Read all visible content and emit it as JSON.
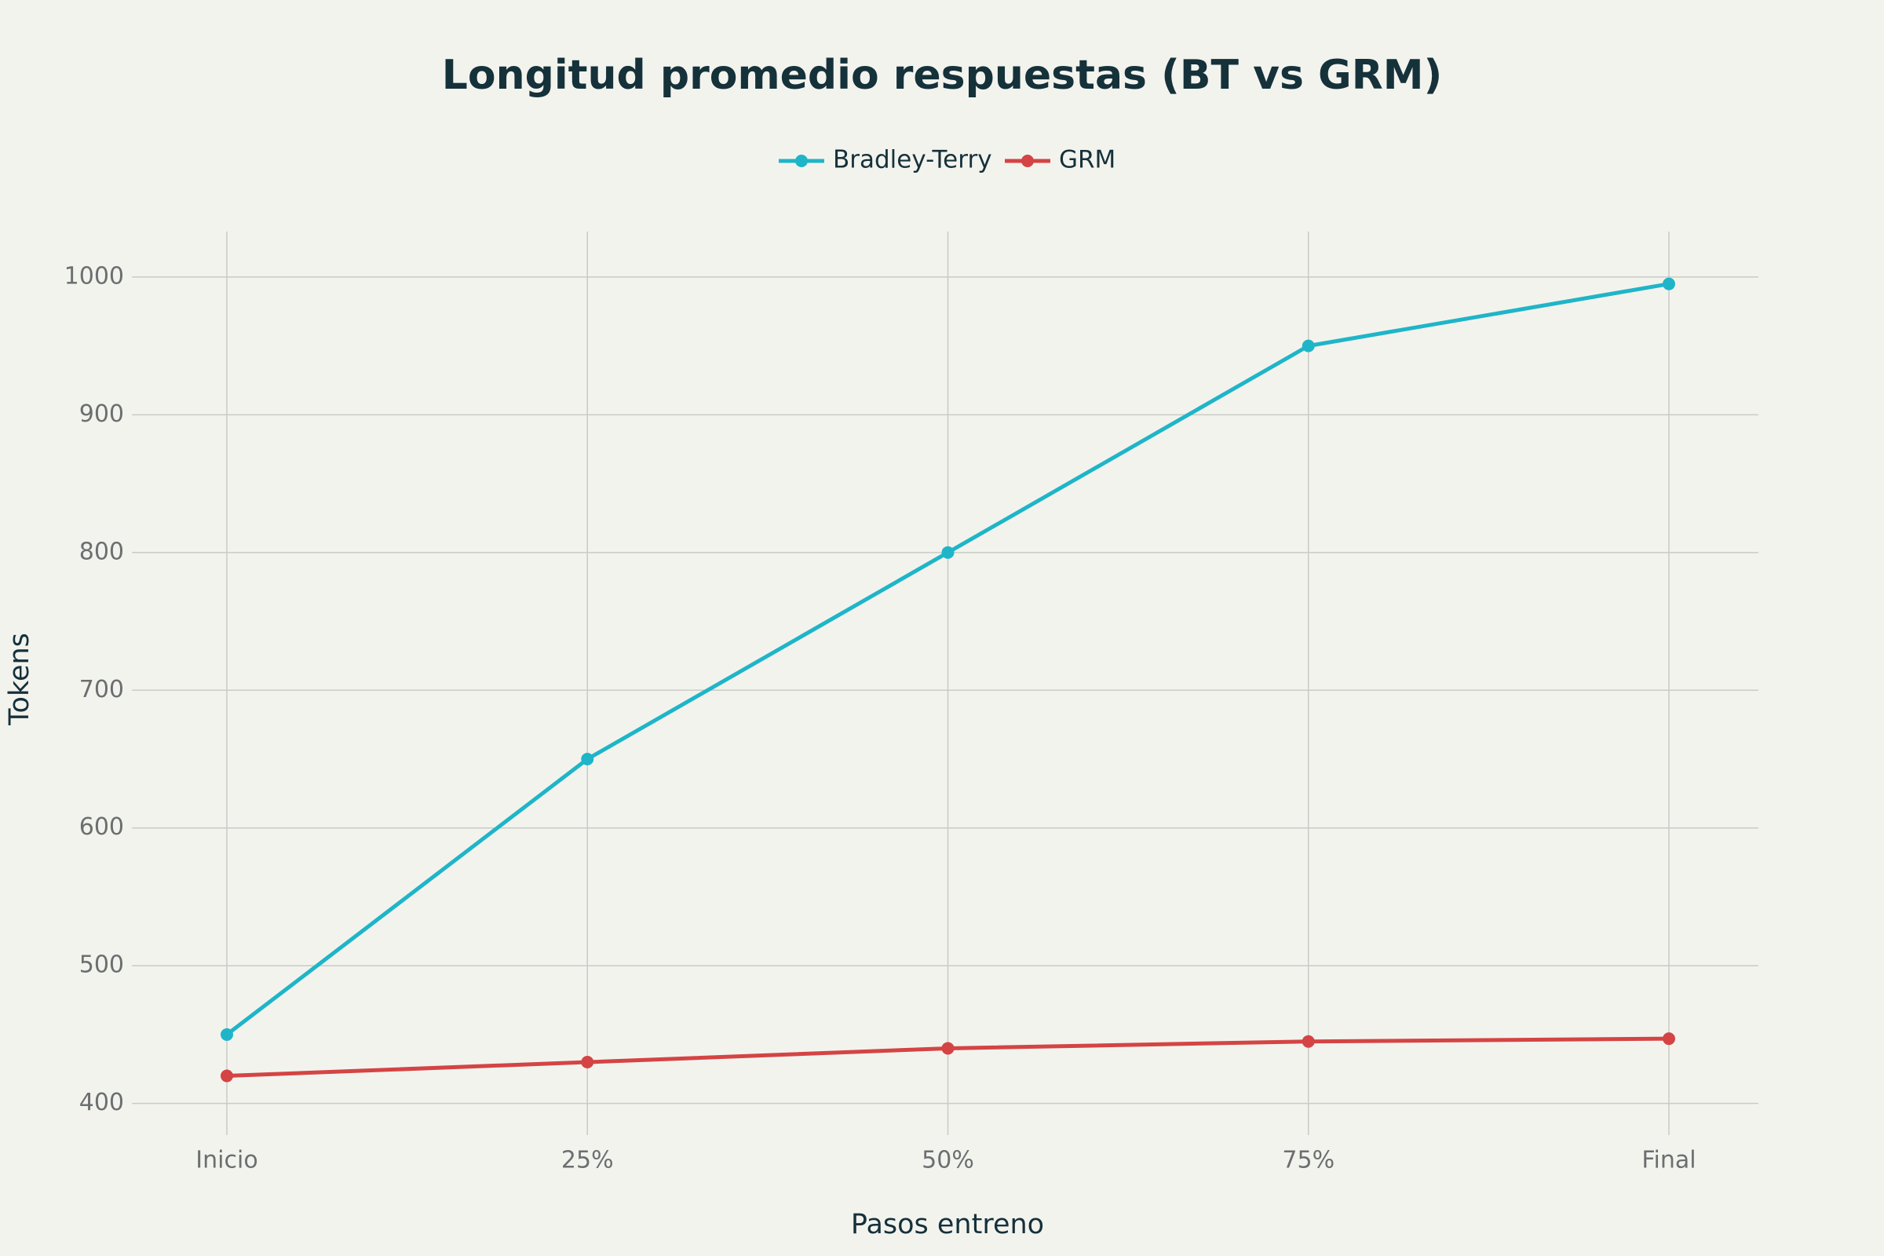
{
  "chart_data": {
    "type": "line",
    "title": "Longitud promedio respuestas (BT vs GRM)",
    "xlabel": "Pasos entreno",
    "ylabel": "Tokens",
    "categories": [
      "Inicio",
      "25%",
      "50%",
      "75%",
      "Final"
    ],
    "series": [
      {
        "name": "Bradley-Terry",
        "color": "#1fb5c8",
        "values": [
          450,
          650,
          800,
          950,
          995
        ]
      },
      {
        "name": "GRM",
        "color": "#d44444",
        "values": [
          420,
          430,
          440,
          445,
          447
        ]
      }
    ],
    "ylim": [
      377,
      1033
    ],
    "yticks": [
      400,
      500,
      600,
      700,
      800,
      900,
      1000
    ],
    "grid": true,
    "legend": "top"
  }
}
